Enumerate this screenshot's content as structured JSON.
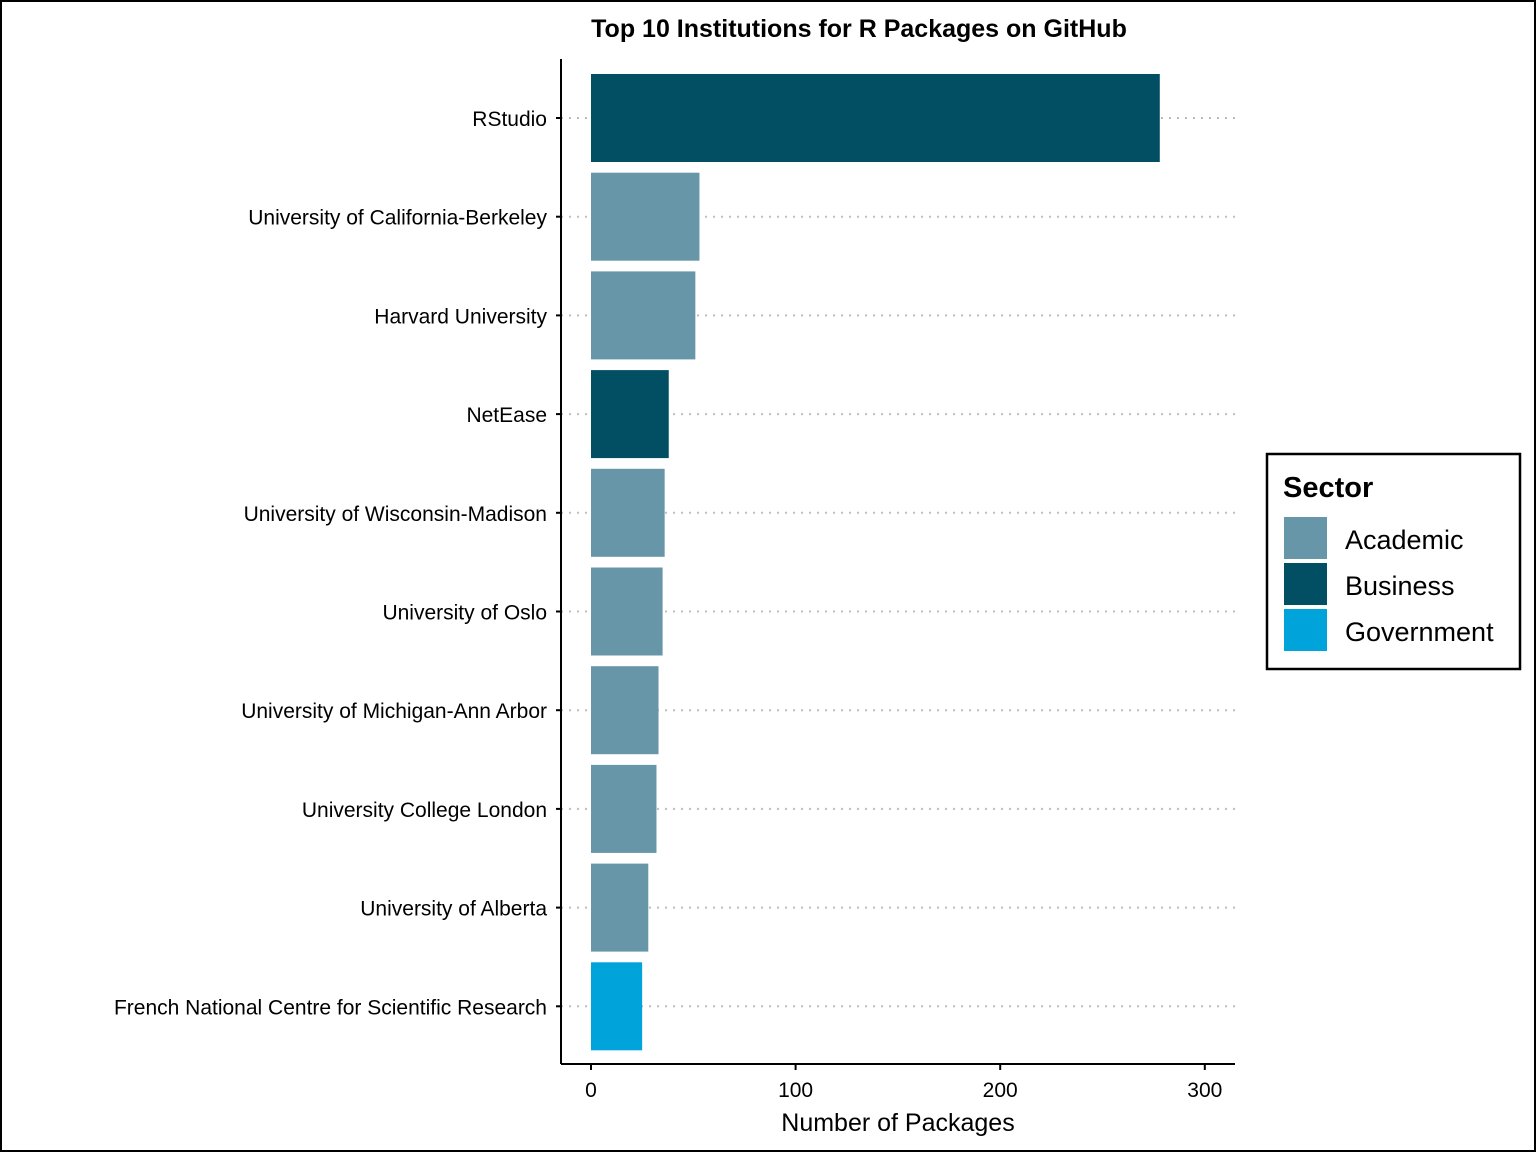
{
  "chart_data": {
    "type": "bar",
    "orientation": "horizontal",
    "title": "Top 10 Institutions for R Packages on GitHub",
    "xlabel": "Number of Packages",
    "ylabel": "",
    "xlim": [
      -15,
      315
    ],
    "xticks": [
      0,
      100,
      200,
      300
    ],
    "xtick_labels": [
      "0",
      "100",
      "200",
      "300"
    ],
    "grid": "dotted horizontal gridlines at each category",
    "categories": [
      "RStudio",
      "University of California-Berkeley",
      "Harvard University",
      "NetEase",
      "University of Wisconsin-Madison",
      "University of Oslo",
      "University of Michigan-Ann Arbor",
      "University College London",
      "University of Alberta",
      "French National Centre for Scientific Research"
    ],
    "values": [
      278,
      53,
      51,
      38,
      36,
      35,
      33,
      32,
      28,
      25
    ],
    "sectors": [
      "Business",
      "Academic",
      "Academic",
      "Business",
      "Academic",
      "Academic",
      "Academic",
      "Academic",
      "Academic",
      "Government"
    ],
    "legend": {
      "title": "Sector",
      "position": "right",
      "entries": [
        {
          "label": "Academic",
          "color": "#6896A9"
        },
        {
          "label": "Business",
          "color": "#024F63"
        },
        {
          "label": "Government",
          "color": "#00A3DA"
        }
      ]
    }
  }
}
